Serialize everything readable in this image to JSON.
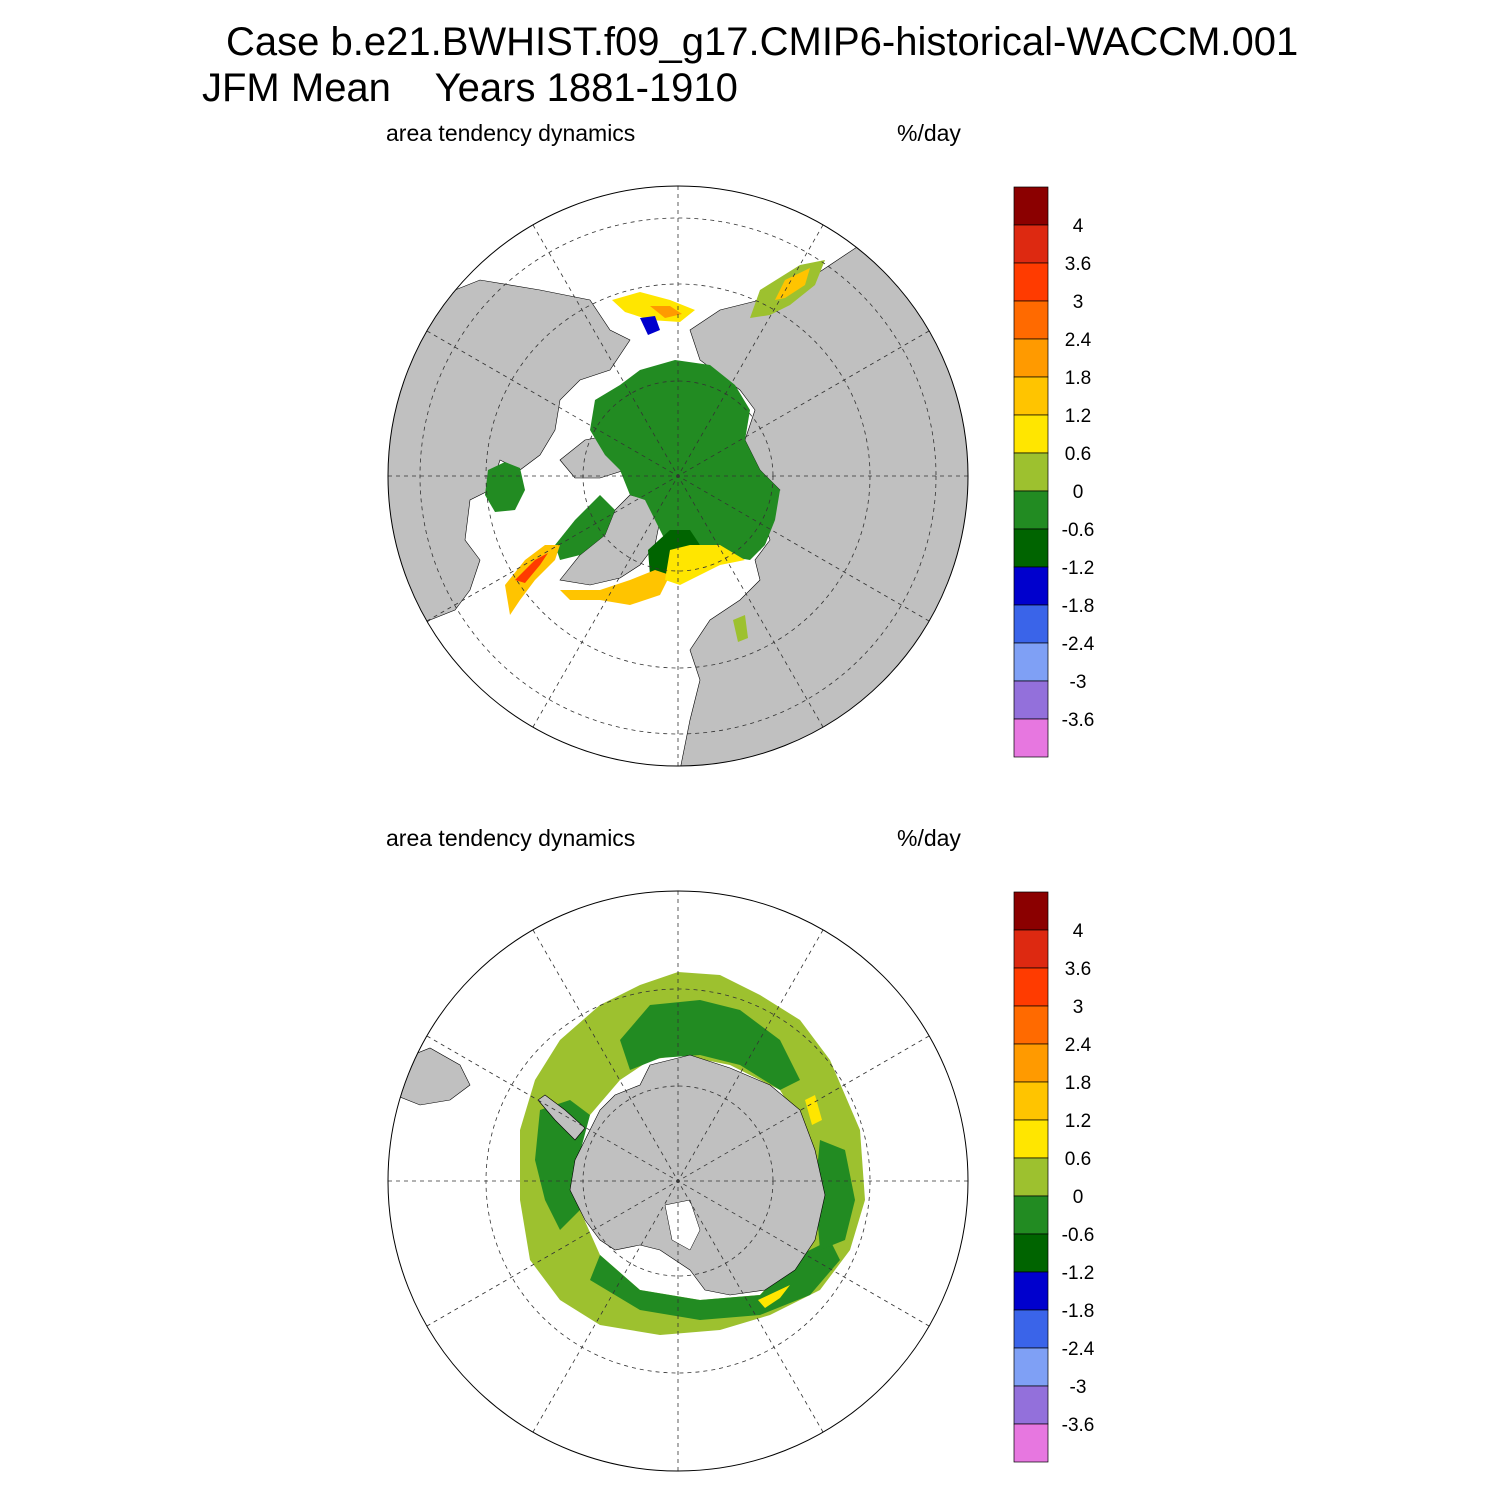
{
  "title": {
    "line1": "Case b.e21.BWHIST.f09_g17.CMIP6-historical-WACCM.001",
    "line2": "JFM Mean    Years 1881-1910"
  },
  "panels": [
    {
      "hemisphere": "north",
      "left_label": "area tendency dynamics",
      "right_label": "%/day"
    },
    {
      "hemisphere": "south",
      "left_label": "area tendency dynamics",
      "right_label": "%/day"
    }
  ],
  "colorbar": {
    "labels": [
      "4",
      "3.6",
      "3",
      "2.4",
      "1.8",
      "1.2",
      "0.6",
      "0",
      "-0.6",
      "-1.2",
      "-1.8",
      "-2.4",
      "-3",
      "-3.6"
    ],
    "colors": [
      "#8b0000",
      "#dd2911",
      "#ff3b00",
      "#ff6a00",
      "#ff9a00",
      "#ffc400",
      "#ffe600",
      "#9dc12f",
      "#228b22",
      "#006400",
      "#0000cd",
      "#3a64e9",
      "#7fa0f5",
      "#9370db",
      "#e777e0"
    ]
  },
  "map_colors": {
    "land": "#c0c0c0",
    "ocean": "#ffffff"
  }
}
